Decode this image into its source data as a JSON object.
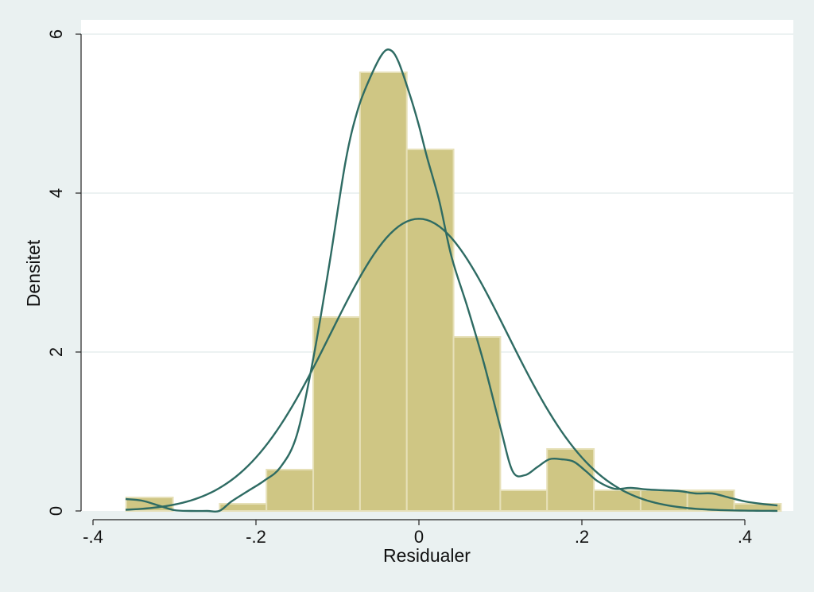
{
  "chart_data": {
    "type": "bar",
    "subtype": "histogram-with-density-curves",
    "xlabel": "Residualer",
    "ylabel": "Densitet",
    "xlim": [
      -0.43,
      0.46
    ],
    "ylim": [
      0,
      6.2
    ],
    "x_ticks": [
      {
        "value": -0.4,
        "label": "-.4"
      },
      {
        "value": -0.2,
        "label": "-.2"
      },
      {
        "value": 0,
        "label": "0"
      },
      {
        "value": 0.2,
        "label": ".2"
      },
      {
        "value": 0.4,
        "label": ".4"
      }
    ],
    "y_ticks": [
      {
        "value": 0,
        "label": "0"
      },
      {
        "value": 2,
        "label": "2"
      },
      {
        "value": 4,
        "label": "4"
      },
      {
        "value": 6,
        "label": "6"
      }
    ],
    "grid": true,
    "legend": "none",
    "colors": {
      "background": "#eaf1f1",
      "plot_background": "#ffffff",
      "bar_fill": "#cfc684",
      "bar_edge": "#e6e0b8",
      "curve": "#2e6b63",
      "grid": "#e5eeee"
    },
    "bins": [
      {
        "x0": -0.3593,
        "x1": -0.3019,
        "value": 0.17
      },
      {
        "x0": -0.3019,
        "x1": -0.2445,
        "value": 0
      },
      {
        "x0": -0.2445,
        "x1": -0.1871,
        "value": 0.09
      },
      {
        "x0": -0.1871,
        "x1": -0.1297,
        "value": 0.52
      },
      {
        "x0": -0.1297,
        "x1": -0.0723,
        "value": 2.44
      },
      {
        "x0": -0.0723,
        "x1": -0.0149,
        "value": 5.52
      },
      {
        "x0": -0.0149,
        "x1": 0.0425,
        "value": 4.55
      },
      {
        "x0": 0.0425,
        "x1": 0.0999,
        "value": 2.19
      },
      {
        "x0": 0.0999,
        "x1": 0.1573,
        "value": 0.26
      },
      {
        "x0": 0.1573,
        "x1": 0.2147,
        "value": 0.78
      },
      {
        "x0": 0.2147,
        "x1": 0.2721,
        "value": 0.26
      },
      {
        "x0": 0.2721,
        "x1": 0.3295,
        "value": 0.26
      },
      {
        "x0": 0.3295,
        "x1": 0.3869,
        "value": 0.26
      },
      {
        "x0": 0.3869,
        "x1": 0.4443,
        "value": 0.09
      }
    ],
    "series": [
      {
        "kind": "kernel-density",
        "x": [
          -0.36,
          -0.34,
          -0.32,
          -0.3,
          -0.28,
          -0.26,
          -0.245,
          -0.23,
          -0.21,
          -0.19,
          -0.17,
          -0.15,
          -0.13,
          -0.11,
          -0.09,
          -0.075,
          -0.06,
          -0.045,
          -0.035,
          -0.025,
          -0.01,
          0.0,
          0.01,
          0.025,
          0.04,
          0.06,
          0.08,
          0.1,
          0.115,
          0.13,
          0.145,
          0.16,
          0.175,
          0.19,
          0.205,
          0.22,
          0.24,
          0.26,
          0.28,
          0.3,
          0.32,
          0.34,
          0.36,
          0.38,
          0.4,
          0.42,
          0.44
        ],
        "y": [
          0.15,
          0.13,
          0.07,
          0.01,
          0.0,
          0.0,
          0.0,
          0.12,
          0.25,
          0.38,
          0.55,
          0.95,
          1.9,
          3.1,
          4.4,
          5.05,
          5.45,
          5.75,
          5.8,
          5.65,
          5.2,
          4.85,
          4.45,
          3.9,
          3.2,
          2.55,
          1.85,
          1.05,
          0.5,
          0.45,
          0.55,
          0.65,
          0.65,
          0.62,
          0.5,
          0.37,
          0.28,
          0.29,
          0.27,
          0.26,
          0.25,
          0.22,
          0.22,
          0.17,
          0.12,
          0.09,
          0.07
        ]
      },
      {
        "kind": "normal-density",
        "mean": 0.0,
        "sd": 0.1085,
        "x_range": [
          -0.36,
          0.44
        ]
      }
    ]
  }
}
